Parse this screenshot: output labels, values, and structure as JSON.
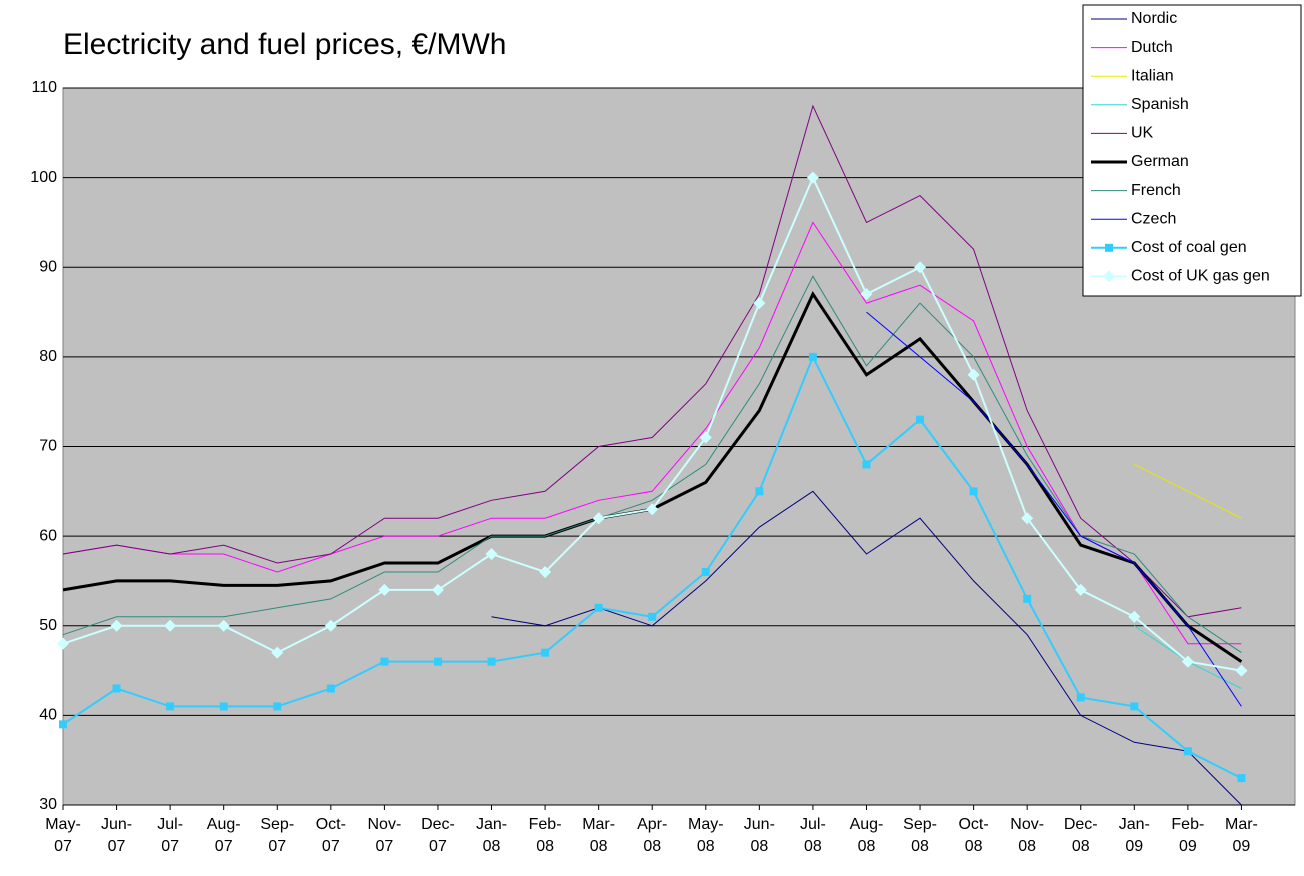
{
  "chart_data": {
    "type": "line",
    "title": "Electricity and fuel prices, €/MWh",
    "categories": [
      "May-07",
      "Jun-07",
      "Jul-07",
      "Aug-07",
      "Sep-07",
      "Oct-07",
      "Nov-07",
      "Dec-07",
      "Jan-08",
      "Feb-08",
      "Mar-08",
      "Apr-08",
      "May-08",
      "Jun-08",
      "Jul-08",
      "Aug-08",
      "Sep-08",
      "Oct-08",
      "Nov-08",
      "Dec-08",
      "Jan-09",
      "Feb-09",
      "Mar-09"
    ],
    "series": [
      {
        "name": "Nordic",
        "color": "#000080",
        "width": 1,
        "values": [
          null,
          null,
          null,
          null,
          null,
          null,
          null,
          null,
          51,
          50,
          52,
          50,
          55,
          61,
          65,
          58,
          62,
          55,
          49,
          40,
          37,
          36,
          30
        ]
      },
      {
        "name": "Dutch",
        "color": "#ff00ff",
        "width": 1,
        "values": [
          58,
          59,
          58,
          58,
          56,
          58,
          60,
          60,
          62,
          62,
          64,
          65,
          72,
          81,
          95,
          86,
          88,
          84,
          70,
          60,
          57,
          48,
          48
        ]
      },
      {
        "name": "Italian",
        "color": "#e8e800",
        "width": 1,
        "values": [
          null,
          null,
          null,
          null,
          null,
          null,
          null,
          null,
          null,
          null,
          null,
          null,
          null,
          null,
          null,
          null,
          null,
          null,
          null,
          null,
          68,
          65,
          62
        ]
      },
      {
        "name": "Spanish",
        "color": "#33d6d6",
        "width": 1,
        "values": [
          null,
          null,
          null,
          null,
          null,
          null,
          null,
          null,
          null,
          null,
          null,
          null,
          null,
          null,
          null,
          null,
          null,
          null,
          null,
          null,
          50,
          46,
          43
        ]
      },
      {
        "name": "UK",
        "color": "#800080",
        "width": 1,
        "values": [
          58,
          59,
          58,
          59,
          57,
          58,
          62,
          62,
          64,
          65,
          70,
          71,
          77,
          87,
          108,
          95,
          98,
          92,
          74,
          62,
          57,
          51,
          52
        ]
      },
      {
        "name": "German",
        "color": "#000000",
        "width": 3,
        "values": [
          54,
          55,
          55,
          54.5,
          54.5,
          55,
          57,
          57,
          60,
          60,
          62,
          63,
          66,
          74,
          87,
          78,
          82,
          75,
          68,
          59,
          57,
          50,
          46
        ]
      },
      {
        "name": "French",
        "color": "#2e8b7a",
        "width": 1,
        "values": [
          49,
          51,
          51,
          51,
          52,
          53,
          56,
          56,
          60,
          60,
          62,
          64,
          68,
          77,
          89,
          79,
          86,
          80,
          69,
          60,
          58,
          51,
          47
        ]
      },
      {
        "name": "Czech",
        "color": "#0000ff",
        "width": 1,
        "values": [
          null,
          null,
          null,
          null,
          null,
          null,
          null,
          null,
          null,
          null,
          null,
          null,
          null,
          null,
          null,
          85,
          80,
          75,
          68,
          60,
          57,
          50,
          41
        ]
      },
      {
        "name": "Cost of coal gen",
        "color": "#33ccff",
        "width": 2,
        "marker": "square",
        "values": [
          39,
          43,
          41,
          41,
          41,
          43,
          46,
          46,
          46,
          47,
          52,
          51,
          56,
          65,
          80,
          68,
          73,
          65,
          53,
          42,
          41,
          36,
          33
        ]
      },
      {
        "name": "Cost of UK gas gen",
        "color": "#ccffff",
        "width": 2,
        "marker": "diamond",
        "values": [
          48,
          50,
          50,
          50,
          47,
          50,
          54,
          54,
          58,
          56,
          62,
          63,
          71,
          86,
          100,
          87,
          90,
          78,
          62,
          54,
          51,
          46,
          45
        ]
      }
    ],
    "ylim": [
      30,
      110
    ],
    "yticks": [
      30,
      40,
      50,
      60,
      70,
      80,
      90,
      100,
      110
    ],
    "grid": true,
    "legend": "top-right"
  }
}
